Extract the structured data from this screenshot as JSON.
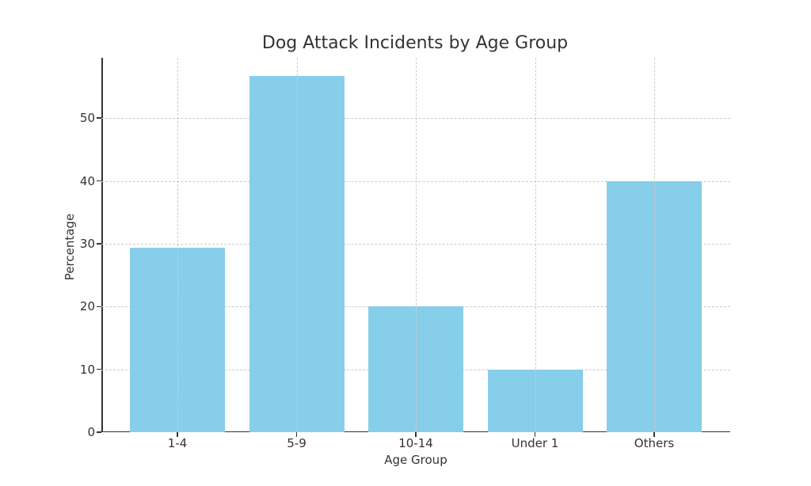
{
  "chart_data": {
    "type": "bar",
    "title": "Dog Attack Incidents by Age Group",
    "xlabel": "Age Group",
    "ylabel": "Percentage",
    "categories": [
      "1-4",
      "5-9",
      "10-14",
      "Under 1",
      "Others"
    ],
    "values": [
      29.3,
      56.7,
      20,
      10,
      40
    ],
    "ylim": [
      0,
      59.6
    ],
    "yticks": [
      0,
      10,
      20,
      30,
      40,
      50
    ],
    "grid": true,
    "bar_color": "#87ceeb"
  }
}
